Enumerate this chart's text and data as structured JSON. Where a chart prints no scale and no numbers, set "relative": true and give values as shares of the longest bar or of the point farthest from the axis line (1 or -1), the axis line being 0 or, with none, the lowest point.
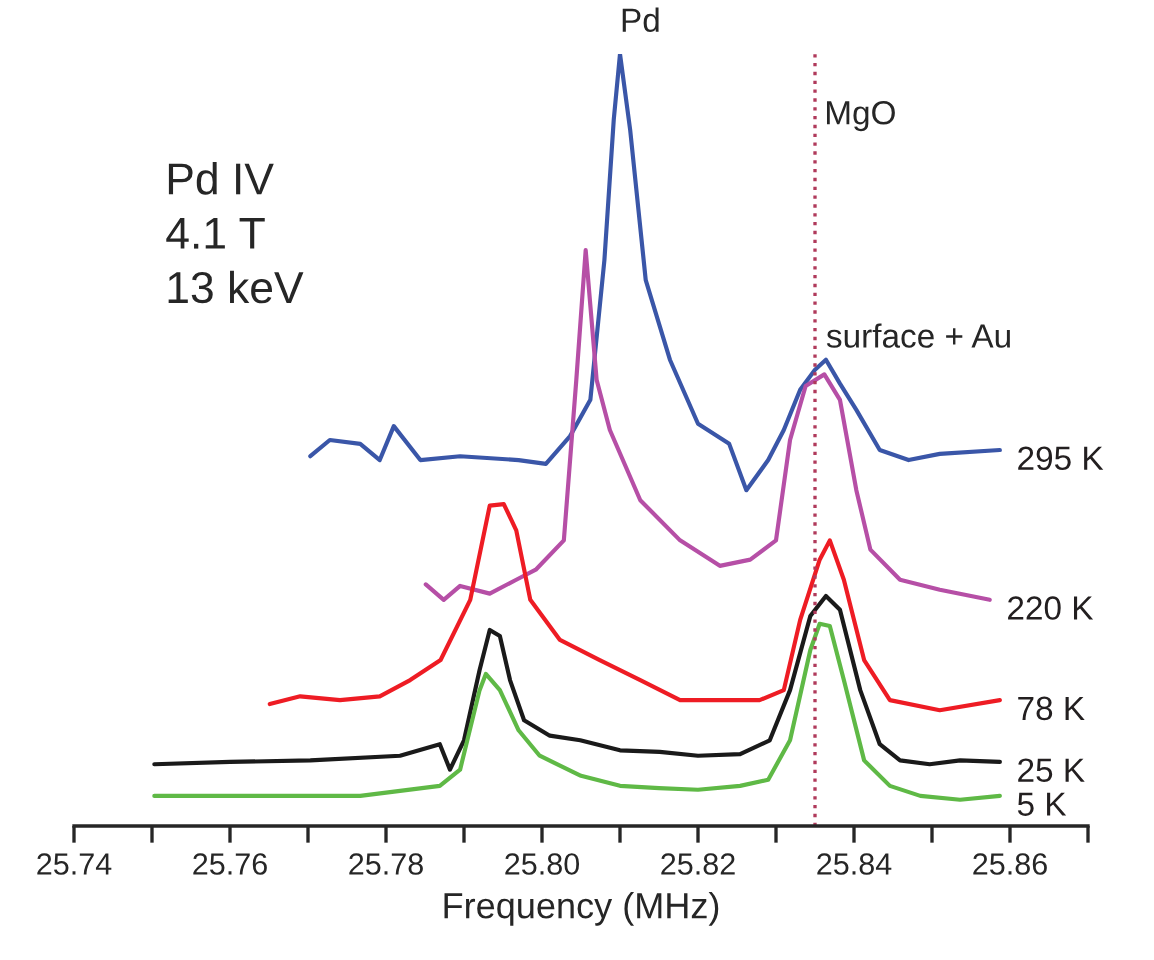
{
  "chart_data": {
    "type": "line",
    "relative": true,
    "xlabel": "Frequency (MHz)",
    "xlim": [
      25.74,
      25.87
    ],
    "xticks": [
      25.74,
      {
        "value": 25.75,
        "label": null
      },
      25.76,
      {
        "value": 25.77,
        "label": null
      },
      25.78,
      {
        "value": 25.79,
        "label": null
      },
      {
        "value": 25.8,
        "label": "25.80"
      },
      {
        "value": 25.81,
        "label": null
      },
      25.82,
      {
        "value": 25.83,
        "label": null
      },
      25.84,
      {
        "value": 25.85,
        "label": null
      },
      25.86,
      {
        "value": 25.87,
        "label": null
      }
    ],
    "tick_labels": "x",
    "grid": false,
    "legend": false,
    "marker": "none",
    "line_style": "solid",
    "ref_lines": [
      {
        "axis": "x",
        "value": 25.835,
        "label": "MgO",
        "color": "#b03a5b",
        "line_style": "dotted"
      }
    ],
    "annotations": [
      "Pd IV\n4.1 T\n13 keV",
      {
        "text": "Pd",
        "x": 25.81,
        "y": 1
      },
      {
        "text": "surface + Au",
        "x": 25.8364,
        "y": 0.591
      }
    ],
    "series": [
      {
        "name": "295 K",
        "color": "#3a56a8",
        "x": [
          25.7703,
          25.7728,
          25.7767,
          25.7792,
          25.781,
          25.7844,
          25.7895,
          25.797,
          25.8005,
          25.8036,
          25.8062,
          25.808,
          25.8092,
          25.81,
          25.8113,
          25.8133,
          25.8164,
          25.82,
          25.824,
          25.8262,
          25.829,
          25.831,
          25.8331,
          25.835,
          25.8364,
          25.8382,
          25.8403,
          25.8433,
          25.847,
          25.851,
          25.8587
        ],
        "values": [
          0.479,
          0.5,
          0.495,
          0.474,
          0.518,
          0.474,
          0.479,
          0.474,
          0.469,
          0.505,
          0.552,
          0.733,
          0.915,
          1,
          0.902,
          0.707,
          0.604,
          0.521,
          0.495,
          0.435,
          0.474,
          0.513,
          0.565,
          0.591,
          0.604,
          0.573,
          0.539,
          0.487,
          0.474,
          0.482,
          0.487
        ]
      },
      {
        "name": "220 K",
        "color": "#b64fa6",
        "x": [
          25.7851,
          25.7874,
          25.7895,
          25.7933,
          25.7967,
          25.7992,
          25.8028,
          25.8044,
          25.8056,
          25.807,
          25.8087,
          25.8126,
          25.8177,
          25.8228,
          25.8267,
          25.83,
          25.8318,
          25.8338,
          25.8362,
          25.8382,
          25.8403,
          25.8421,
          25.8459,
          25.851,
          25.8574
        ],
        "values": [
          0.313,
          0.293,
          0.311,
          0.301,
          0.319,
          0.332,
          0.37,
          0.578,
          0.746,
          0.578,
          0.513,
          0.422,
          0.37,
          0.337,
          0.345,
          0.37,
          0.5,
          0.57,
          0.585,
          0.552,
          0.435,
          0.358,
          0.319,
          0.306,
          0.293
        ]
      },
      {
        "name": "78 K",
        "color": "#ee1c24",
        "x": [
          25.7651,
          25.769,
          25.7741,
          25.7792,
          25.7831,
          25.787,
          25.7908,
          25.7933,
          25.7951,
          25.7967,
          25.7985,
          25.8023,
          25.8074,
          25.8126,
          25.8177,
          25.8228,
          25.8279,
          25.831,
          25.8331,
          25.8356,
          25.8369,
          25.8387,
          25.8413,
          25.8446,
          25.851,
          25.8587
        ],
        "values": [
          0.158,
          0.168,
          0.163,
          0.168,
          0.189,
          0.215,
          0.293,
          0.415,
          0.417,
          0.383,
          0.293,
          0.241,
          0.215,
          0.189,
          0.163,
          0.163,
          0.163,
          0.176,
          0.267,
          0.345,
          0.37,
          0.319,
          0.215,
          0.163,
          0.15,
          0.163
        ]
      },
      {
        "name": "25 K",
        "color": "#1a1a1a",
        "x": [
          25.7503,
          25.76,
          25.7703,
          25.7818,
          25.7869,
          25.7882,
          25.79,
          25.792,
          25.7933,
          25.7946,
          25.7959,
          25.7977,
          25.801,
          25.8049,
          25.81,
          25.8151,
          25.82,
          25.8254,
          25.8292,
          25.8318,
          25.8344,
          25.8364,
          25.8382,
          25.8408,
          25.8433,
          25.8459,
          25.8497,
          25.8536,
          25.8587
        ],
        "values": [
          0.08,
          0.083,
          0.085,
          0.091,
          0.106,
          0.073,
          0.111,
          0.202,
          0.254,
          0.246,
          0.189,
          0.137,
          0.117,
          0.111,
          0.098,
          0.096,
          0.091,
          0.093,
          0.111,
          0.176,
          0.272,
          0.298,
          0.28,
          0.176,
          0.106,
          0.085,
          0.08,
          0.085,
          0.083
        ]
      },
      {
        "name": "5 K",
        "color": "#5fb946",
        "x": [
          25.7503,
          25.76,
          25.7703,
          25.7767,
          25.7869,
          25.7895,
          25.792,
          25.7928,
          25.7946,
          25.797,
          25.7997,
          25.805,
          25.81,
          25.815,
          25.82,
          25.8254,
          25.829,
          25.8318,
          25.8344,
          25.8356,
          25.8369,
          25.8387,
          25.8413,
          25.8446,
          25.8485,
          25.8536,
          25.8587
        ],
        "values": [
          0.039,
          0.039,
          0.039,
          0.039,
          0.052,
          0.073,
          0.176,
          0.197,
          0.176,
          0.124,
          0.091,
          0.065,
          0.052,
          0.049,
          0.047,
          0.052,
          0.06,
          0.111,
          0.228,
          0.262,
          0.259,
          0.189,
          0.085,
          0.052,
          0.039,
          0.034,
          0.039
        ]
      }
    ]
  }
}
